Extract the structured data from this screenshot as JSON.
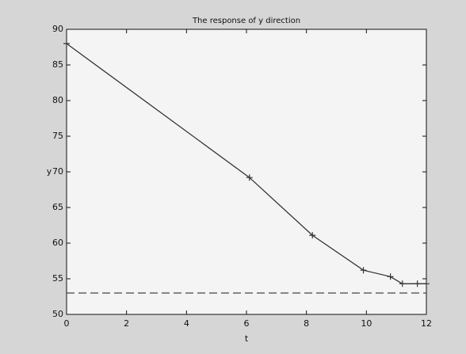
{
  "chart_data": {
    "type": "line",
    "title": "The response of y direction",
    "x_label": "t",
    "y_label": "y",
    "xlim": [
      0,
      12
    ],
    "xticks": [
      0,
      2,
      4,
      6,
      8,
      10,
      12
    ],
    "ylim": [
      50,
      90
    ],
    "yticks": [
      50,
      55,
      60,
      65,
      70,
      75,
      80,
      85,
      90
    ],
    "series": [
      {
        "color": "#333333",
        "dash": false,
        "markers": true,
        "x": [
          0,
          6.1,
          8.2,
          9.9,
          10.8,
          11.2,
          11.7,
          12
        ],
        "values": [
          88,
          69.2,
          61.1,
          56.2,
          55.3,
          54.3,
          54.3,
          54.3
        ]
      },
      {
        "color": "#444444",
        "dash": true,
        "markers": false,
        "x": [
          0,
          12
        ],
        "values": [
          53,
          53
        ]
      }
    ]
  }
}
